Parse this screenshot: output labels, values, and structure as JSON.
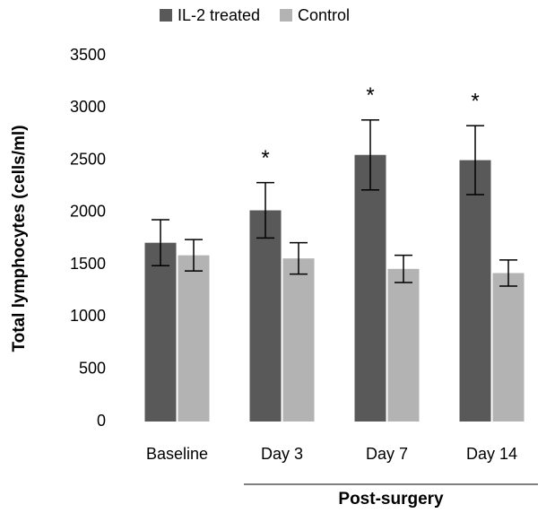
{
  "chart_data": {
    "type": "bar",
    "y_label": "Total lymphocytes (cells/ml)",
    "categories": [
      "Baseline",
      "Day 3",
      "Day 7",
      "Day 14"
    ],
    "group_label": "Post-surgery",
    "series": [
      {
        "name": "IL-2 treated",
        "color": "#595959",
        "values": [
          1710,
          2020,
          2550,
          2500
        ],
        "errors": [
          220,
          265,
          335,
          330
        ]
      },
      {
        "name": "Control",
        "color": "#b3b3b3",
        "values": [
          1590,
          1560,
          1460,
          1420
        ],
        "errors": [
          150,
          150,
          130,
          125
        ]
      }
    ],
    "significance": [
      null,
      "*",
      "*",
      "*"
    ],
    "ylim": [
      0,
      3500
    ],
    "yticks": [
      0,
      500,
      1000,
      1500,
      2000,
      2500,
      3000,
      3500
    ],
    "grid": false
  }
}
